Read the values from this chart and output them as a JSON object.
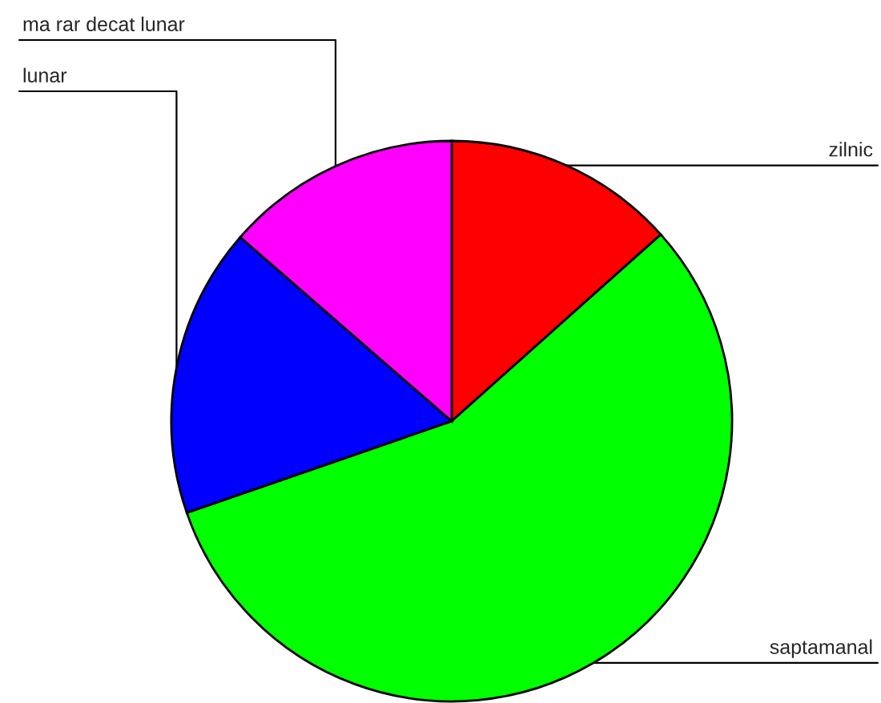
{
  "chart_data": {
    "type": "pie",
    "categories": [
      "zilnic",
      "saptamanal",
      "lunar",
      "ma rar decat lunar"
    ],
    "values": [
      13.4,
      56.3,
      16.7,
      13.6
    ],
    "colors": [
      "#ff0000",
      "#00ff00",
      "#0000ff",
      "#ff00ff"
    ],
    "legend": false
  }
}
